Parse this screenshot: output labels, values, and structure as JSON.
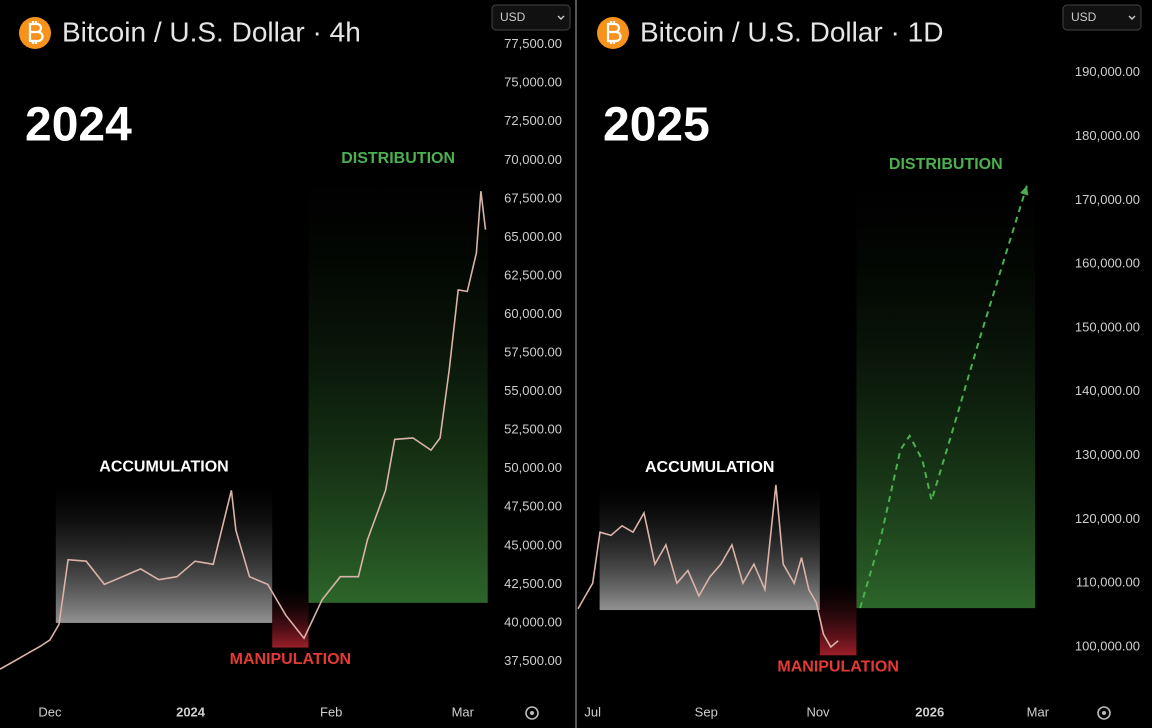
{
  "chart_data": [
    {
      "type": "line",
      "title": "Bitcoin / U.S. Dollar · 4h",
      "year": "2024",
      "currency": "USD",
      "series": [
        {
          "name": "BTCUSD",
          "color": "#d9b3a8",
          "x": [
            -11,
            -8,
            -5,
            -2,
            0,
            2,
            4,
            8,
            12,
            16,
            20,
            24,
            28,
            32,
            36,
            40,
            41,
            44,
            48,
            52,
            56,
            60,
            64,
            68,
            70,
            74,
            76,
            80,
            84,
            86,
            88,
            90,
            92,
            94,
            95,
            96
          ],
          "values": [
            37000,
            37500,
            38000,
            38500,
            38900,
            39900,
            44100,
            44000,
            42500,
            43000,
            43500,
            42800,
            43000,
            44000,
            43800,
            48600,
            46000,
            43000,
            42500,
            40500,
            39000,
            41500,
            43000,
            43000,
            45400,
            48600,
            51900,
            52000,
            51200,
            52000,
            56400,
            61600,
            61500,
            64000,
            68000,
            65500
          ]
        }
      ],
      "zones": [
        {
          "label": "ACCUMULATION",
          "color": "#9a9a9a",
          "label_color": "#ffffff",
          "label_side": "above",
          "x": [
            1.3,
            49
          ],
          "y": [
            40000,
            49000
          ]
        },
        {
          "label": "MANIPULATION",
          "color": "#a3202c",
          "label_color": "#e53935",
          "label_side": "below",
          "x": [
            49,
            57
          ],
          "y": [
            38400,
            42300
          ]
        },
        {
          "label": "DISTRIBUTION",
          "color": "#2f6b2c",
          "label_color": "#4caf50",
          "label_side": "above",
          "x": [
            57,
            96.5
          ],
          "y": [
            41300,
            69000
          ]
        }
      ],
      "xlim": [
        -11,
        97
      ],
      "xticks": [
        {
          "value": 0,
          "label": "Dec"
        },
        {
          "value": 31,
          "label": "2024"
        },
        {
          "value": 62,
          "label": "Feb"
        },
        {
          "value": 91,
          "label": "Mar"
        }
      ],
      "ylim": [
        35000,
        80400
      ],
      "yticks": [
        {
          "value": 37500,
          "label": "37,500.00"
        },
        {
          "value": 40000,
          "label": "40,000.00"
        },
        {
          "value": 42500,
          "label": "42,500.00"
        },
        {
          "value": 45000,
          "label": "45,000.00"
        },
        {
          "value": 47500,
          "label": "47,500.00"
        },
        {
          "value": 50000,
          "label": "50,000.00"
        },
        {
          "value": 52500,
          "label": "52,500.00"
        },
        {
          "value": 55000,
          "label": "55,000.00"
        },
        {
          "value": 57500,
          "label": "57,500.00"
        },
        {
          "value": 60000,
          "label": "60,000.00"
        },
        {
          "value": 62500,
          "label": "62,500.00"
        },
        {
          "value": 65000,
          "label": "65,000.00"
        },
        {
          "value": 67500,
          "label": "67,500.00"
        },
        {
          "value": 70000,
          "label": "70,000.00"
        },
        {
          "value": 72500,
          "label": "72,500.00"
        },
        {
          "value": 75000,
          "label": "75,000.00"
        },
        {
          "value": 77500,
          "label": "77,500.00"
        }
      ]
    },
    {
      "type": "line",
      "title": "Bitcoin / U.S. Dollar · 1D",
      "year": "2025",
      "currency": "USD",
      "series": [
        {
          "name": "BTCUSD",
          "color": "#d9b3a8",
          "x": [
            -8,
            -4,
            0,
            4,
            10,
            16,
            22,
            28,
            34,
            40,
            46,
            52,
            58,
            64,
            70,
            76,
            82,
            88,
            94,
            100,
            104,
            110,
            114,
            118,
            122,
            126,
            130,
            134
          ],
          "values": [
            106000,
            108000,
            110000,
            118000,
            117500,
            119000,
            118000,
            121000,
            113000,
            116000,
            110000,
            112000,
            108000,
            111000,
            113000,
            116000,
            110000,
            113000,
            109000,
            125400,
            113000,
            110000,
            114000,
            109000,
            107000,
            102000,
            100000,
            101000
          ]
        }
      ],
      "projection": {
        "color": "#4caf50",
        "x": [
          146,
          157,
          168,
          173,
          180,
          185,
          195,
          211,
          237
        ],
        "values": [
          106100,
          116800,
          130900,
          133100,
          129300,
          123000,
          132500,
          148100,
          172300
        ]
      },
      "zones": [
        {
          "label": "ACCUMULATION",
          "color": "#9a9a9a",
          "label_color": "#ffffff",
          "label_side": "above",
          "x": [
            3.8,
            124
          ],
          "y": [
            105800,
            125400
          ]
        },
        {
          "label": "MANIPULATION",
          "color": "#a3202c",
          "label_color": "#e53935",
          "label_side": "below",
          "x": [
            124,
            144
          ],
          "y": [
            98700,
            110500
          ]
        },
        {
          "label": "DISTRIBUTION",
          "color": "#2f6b2c",
          "label_color": "#4caf50",
          "label_side": "above",
          "x": [
            144,
            241.5
          ],
          "y": [
            106100,
            172900
          ]
        }
      ],
      "xlim": [
        -8,
        254
      ],
      "xticks": [
        {
          "value": 0,
          "label": "Jul"
        },
        {
          "value": 62,
          "label": "Sep"
        },
        {
          "value": 123,
          "label": "Nov"
        },
        {
          "value": 184,
          "label": "2026"
        },
        {
          "value": 243,
          "label": "Mar"
        }
      ],
      "ylim": [
        91700,
        201400
      ],
      "yticks": [
        {
          "value": 100000,
          "label": "100,000.00"
        },
        {
          "value": 110000,
          "label": "110,000.00"
        },
        {
          "value": 120000,
          "label": "120,000.00"
        },
        {
          "value": 130000,
          "label": "130,000.00"
        },
        {
          "value": 140000,
          "label": "140,000.00"
        },
        {
          "value": 150000,
          "label": "150,000.00"
        },
        {
          "value": 160000,
          "label": "160,000.00"
        },
        {
          "value": 170000,
          "label": "170,000.00"
        },
        {
          "value": 180000,
          "label": "180,000.00"
        },
        {
          "value": 190000,
          "label": "190,000.00"
        }
      ]
    }
  ]
}
